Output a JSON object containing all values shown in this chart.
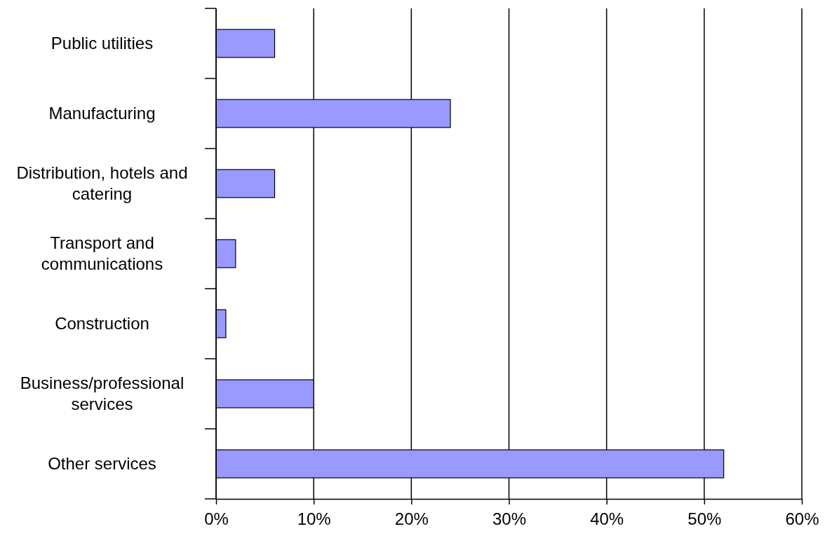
{
  "chart_data": {
    "type": "bar",
    "orientation": "horizontal",
    "categories": [
      "Public utilities",
      "Manufacturing",
      "Distribution, hotels and catering",
      "Transport and communications",
      "Construction",
      "Business/professional services",
      "Other services"
    ],
    "values": [
      6,
      24,
      6,
      2,
      1,
      10,
      52
    ],
    "color": "#9999ff",
    "xlim": [
      0,
      60
    ],
    "xticks": [
      {
        "value": 0,
        "label": "0%"
      },
      {
        "value": 10,
        "label": "10%"
      },
      {
        "value": 20,
        "label": "20%"
      },
      {
        "value": 30,
        "label": "30%"
      },
      {
        "value": 40,
        "label": "40%"
      },
      {
        "value": 50,
        "label": "50%"
      },
      {
        "value": 60,
        "label": "60%"
      }
    ],
    "grid": "x"
  }
}
